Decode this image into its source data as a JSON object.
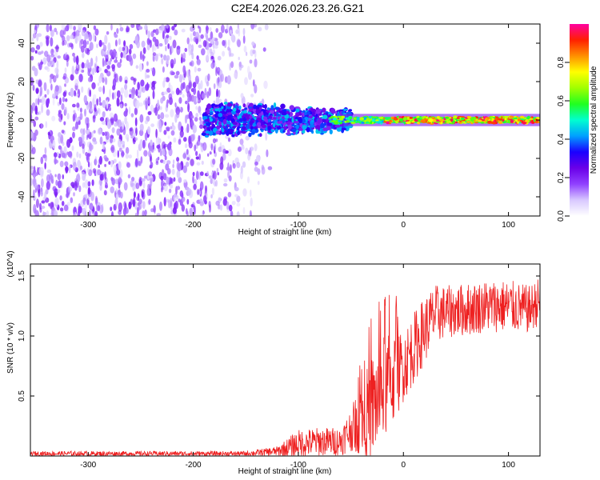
{
  "figure_title": "C2E4.2026.026.23.26.G21",
  "chart_data": [
    {
      "type": "heatmap",
      "title": "C2E4.2026.026.23.26.G21",
      "xlabel": "Height of straight line (km)",
      "ylabel": "Frequency (Hz)",
      "xlim": [
        -355,
        130
      ],
      "ylim": [
        -50,
        50
      ],
      "xticks": [
        -300,
        -200,
        -100,
        0,
        100
      ],
      "yticks": [
        -40,
        -20,
        0,
        20,
        40
      ],
      "colorbar": {
        "label": "Normalized spectral amplitude",
        "range": [
          0.0,
          1.0
        ],
        "ticks": [
          0.0,
          0.2,
          0.4,
          0.6,
          0.8
        ],
        "tick_labels": [
          "0.0",
          "0.2",
          "0.4",
          "0.6",
          "0.8"
        ],
        "colors": [
          "#ffffff",
          "#d8c8ff",
          "#9040ff",
          "#6a00e8",
          "#1a00ff",
          "#00a0ff",
          "#00ffd0",
          "#20ff20",
          "#a0ff00",
          "#ffff00",
          "#ff9000",
          "#ff2000",
          "#ff00a0"
        ]
      },
      "description_regions": [
        {
          "x_range": [
            -355,
            -180
          ],
          "frequency_spread": 50,
          "amplitude": "0.05-0.15 (noise)"
        },
        {
          "x_range": [
            -180,
            -130
          ],
          "frequency_spread": 50,
          "amplitude": "faint noise tapering"
        },
        {
          "x_range": [
            -190,
            -60
          ],
          "frequency_center": 0,
          "frequency_halfwidth": 10,
          "amplitude": "0.2-0.5"
        },
        {
          "x_range": [
            -60,
            130
          ],
          "frequency_center": 0,
          "frequency_halfwidth": 2,
          "amplitude": "0.6-1.0"
        }
      ]
    },
    {
      "type": "line",
      "title": "",
      "xlabel": "Height of straight line (km)",
      "ylabel": "SNR (10 * v/v)",
      "y_multiplier": "(x10^4)",
      "xlim": [
        -355,
        130
      ],
      "ylim": [
        0,
        1.6
      ],
      "xticks": [
        -300,
        -200,
        -100,
        0,
        100
      ],
      "yticks": [
        0.5,
        1.0,
        1.5
      ],
      "ytick_labels": [
        "0.5",
        "1.0",
        "1.5"
      ],
      "color": "#ee2020",
      "series_envelope": {
        "x": [
          -355,
          -250,
          -150,
          -120,
          -100,
          -80,
          -60,
          -50,
          -40,
          -30,
          -20,
          -10,
          0,
          10,
          20,
          30,
          40,
          60,
          80,
          100,
          120,
          130
        ],
        "y_mean": [
          0.02,
          0.02,
          0.02,
          0.04,
          0.1,
          0.12,
          0.12,
          0.22,
          0.3,
          0.4,
          0.55,
          0.65,
          0.75,
          0.9,
          1.05,
          1.18,
          1.2,
          1.22,
          1.25,
          1.25,
          1.22,
          1.3
        ],
        "y_spread": [
          0.02,
          0.02,
          0.02,
          0.04,
          0.12,
          0.12,
          0.12,
          0.18,
          0.3,
          0.45,
          0.45,
          0.4,
          0.3,
          0.3,
          0.28,
          0.25,
          0.22,
          0.22,
          0.22,
          0.22,
          0.2,
          0.2
        ]
      }
    }
  ],
  "colors": {
    "line": "#ee2020",
    "axis": "#000000",
    "background": "#ffffff"
  }
}
